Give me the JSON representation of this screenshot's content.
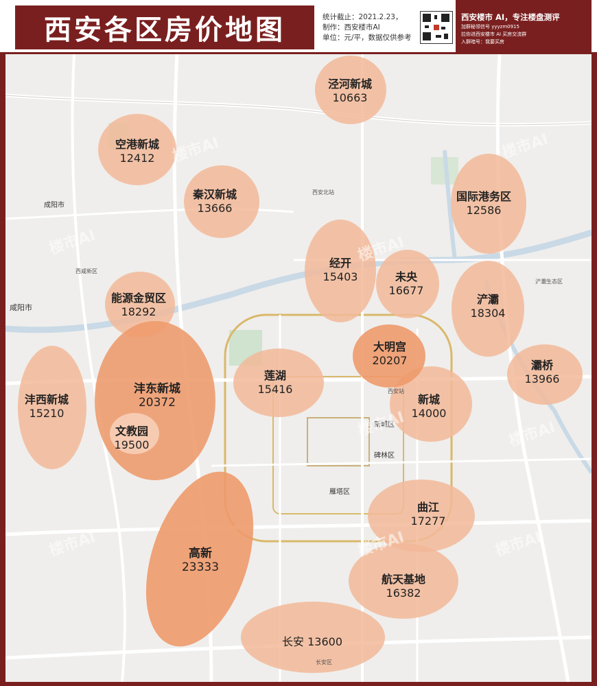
{
  "header": {
    "title": "西安各区房价地图",
    "stat_date": "统计截止：2021.2.23，",
    "producer": "制作：西安楼市AI",
    "unit": "单位：元/平，数据仅供参考"
  },
  "promo": {
    "line1": "西安楼市 AI，专注楼盘测评",
    "line2": "加群秘领信号 yyyzm0915",
    "line3": "拉你进西安楼市 AI 买房交流群",
    "line4": "入群暗号：我要买房"
  },
  "watermark": "楼市AI",
  "colors": {
    "brand": "#7a1f1f",
    "district_light": "#f2b899",
    "district_dark": "#ee9a6b"
  },
  "districts": [
    {
      "name": "泾河新城",
      "price": "10663"
    },
    {
      "name": "空港新城",
      "price": "12412"
    },
    {
      "name": "秦汉新城",
      "price": "13666"
    },
    {
      "name": "国际港务区",
      "price": "12586"
    },
    {
      "name": "经开",
      "price": "15403"
    },
    {
      "name": "未央",
      "price": "16677"
    },
    {
      "name": "能源金贸区",
      "price": "18292"
    },
    {
      "name": "浐灞",
      "price": "18304"
    },
    {
      "name": "大明宫",
      "price": "20207"
    },
    {
      "name": "灞桥",
      "price": "13966"
    },
    {
      "name": "沣东新城",
      "price": "20372"
    },
    {
      "name": "莲湖",
      "price": "15416"
    },
    {
      "name": "沣西新城",
      "price": "15210"
    },
    {
      "name": "新城",
      "price": "14000"
    },
    {
      "name": "文教园",
      "price": "19500"
    },
    {
      "name": "曲江",
      "price": "17277"
    },
    {
      "name": "高新",
      "price": "23333"
    },
    {
      "name": "航天基地",
      "price": "16382"
    },
    {
      "name": "长安",
      "price": "13600"
    }
  ],
  "places": [
    "咸阳市",
    "成阳市",
    "长安区",
    "碑林区",
    "新城区",
    "雁塔区",
    "西安站",
    "西安北站",
    "西咸新区",
    "浐灞生态区"
  ]
}
